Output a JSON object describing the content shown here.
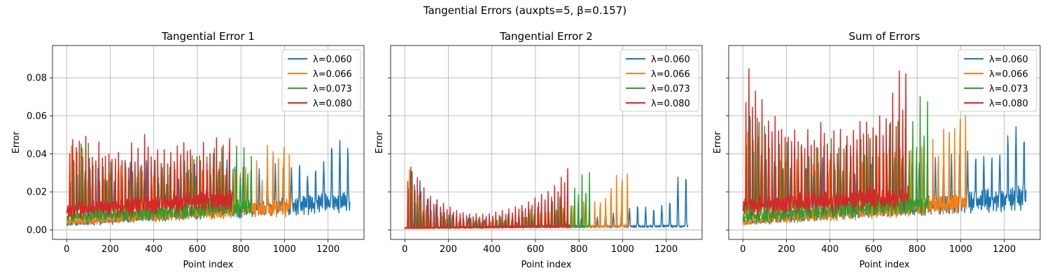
{
  "figure": {
    "suptitle": "Tangential Errors (auxpts=5, β=0.157)"
  },
  "colors": {
    "s0": "#1f77b4",
    "s1": "#ff7f0e",
    "s2": "#2ca02c",
    "s3": "#d62728",
    "grid": "#b0b0b0"
  },
  "chart_data": [
    {
      "type": "line",
      "title": "Tangential Error 1",
      "xlabel": "Point index",
      "ylabel": "Error",
      "xlim": [
        -65,
        1365
      ],
      "ylim": [
        -0.005,
        0.097
      ],
      "xticks": [
        0,
        200,
        400,
        600,
        800,
        1000,
        1200
      ],
      "yticks": [
        0.0,
        0.02,
        0.04,
        0.06,
        0.08
      ],
      "ytick_labels": [
        "0.00",
        "0.02",
        "0.04",
        "0.06",
        "0.08"
      ],
      "grid": true,
      "legend": "upper right",
      "series": [
        {
          "name": "λ=0.060",
          "n": 1300,
          "period": 37,
          "base_start": 0.003,
          "base_end": 0.015,
          "peaks": [
            0.04,
            0.043,
            0.036,
            0.032,
            0.028,
            0.025,
            0.03,
            0.035,
            0.033,
            0.036,
            0.033,
            0.03,
            0.032,
            0.027,
            0.031,
            0.035,
            0.032,
            0.03,
            0.035,
            0.036,
            0.034,
            0.032,
            0.031,
            0.034,
            0.03,
            0.033,
            0.036,
            0.034,
            0.035,
            0.03,
            0.033,
            0.035,
            0.048,
            0.048,
            0.043,
            0.033
          ]
        },
        {
          "name": "λ=0.066",
          "n": 1030,
          "period": 25,
          "base_start": 0.004,
          "base_end": 0.012,
          "peaks": [
            0.045,
            0.046,
            0.044,
            0.03,
            0.034,
            0.036,
            0.027,
            0.033,
            0.026,
            0.038,
            0.034,
            0.03,
            0.028,
            0.033,
            0.035,
            0.032,
            0.028,
            0.034,
            0.03,
            0.035,
            0.036,
            0.031,
            0.03,
            0.033,
            0.03,
            0.035,
            0.032,
            0.034,
            0.03,
            0.035,
            0.03,
            0.035,
            0.034,
            0.028,
            0.036,
            0.03,
            0.046,
            0.044,
            0.04,
            0.046,
            0.042
          ]
        },
        {
          "name": "λ=0.073",
          "n": 850,
          "period": 17,
          "base_start": 0.006,
          "base_end": 0.012,
          "peaks": [
            0.036,
            0.035,
            0.044,
            0.045,
            0.046,
            0.047,
            0.037,
            0.036,
            0.038,
            0.033,
            0.036,
            0.037,
            0.029,
            0.032,
            0.034,
            0.036,
            0.038,
            0.03,
            0.032,
            0.033,
            0.036,
            0.034,
            0.035,
            0.038,
            0.032,
            0.033,
            0.033,
            0.034,
            0.03,
            0.036,
            0.042,
            0.038,
            0.042,
            0.04,
            0.041,
            0.038,
            0.04,
            0.038,
            0.042,
            0.044,
            0.04,
            0.043,
            0.04,
            0.042,
            0.043,
            0.044,
            0.04,
            0.043,
            0.043,
            0.038
          ]
        },
        {
          "name": "λ=0.080",
          "n": 760,
          "period": 15,
          "base_start": 0.01,
          "base_end": 0.016,
          "peaks": [
            0.052,
            0.051,
            0.056,
            0.05,
            0.049,
            0.051,
            0.046,
            0.04,
            0.045,
            0.048,
            0.049,
            0.042,
            0.049,
            0.038,
            0.048,
            0.043,
            0.047,
            0.037,
            0.042,
            0.048,
            0.046,
            0.044,
            0.044,
            0.054,
            0.053,
            0.04,
            0.044,
            0.045,
            0.041,
            0.045,
            0.044,
            0.045,
            0.047,
            0.046,
            0.047,
            0.048,
            0.05,
            0.045,
            0.047,
            0.04,
            0.041,
            0.049,
            0.04,
            0.041,
            0.049,
            0.053,
            0.047,
            0.048,
            0.042,
            0.053,
            0.045
          ]
        }
      ]
    },
    {
      "type": "line",
      "title": "Tangential Error 2",
      "xlabel": "Point index",
      "ylabel": "Error",
      "xlim": [
        -65,
        1365
      ],
      "ylim": [
        -0.005,
        0.097
      ],
      "xticks": [
        0,
        200,
        400,
        600,
        800,
        1000,
        1200
      ],
      "yticks": [
        0.0,
        0.02,
        0.04,
        0.06,
        0.08
      ],
      "ytick_labels": [
        "",
        "",
        "",
        "",
        ""
      ],
      "grid": true,
      "legend": "upper right",
      "series": [
        {
          "name": "λ=0.060",
          "n": 1300,
          "period": 37,
          "base_start": 0.001,
          "base_end": 0.002,
          "peaks": [
            0.034,
            0.026,
            0.018,
            0.013,
            0.01,
            0.008,
            0.007,
            0.006,
            0.005,
            0.005,
            0.004,
            0.004,
            0.004,
            0.004,
            0.004,
            0.004,
            0.004,
            0.005,
            0.005,
            0.005,
            0.006,
            0.006,
            0.007,
            0.007,
            0.008,
            0.009,
            0.01,
            0.011,
            0.013,
            0.012,
            0.011,
            0.013,
            0.015,
            0.028,
            0.029,
            0.031
          ]
        },
        {
          "name": "λ=0.066",
          "n": 1030,
          "period": 25,
          "base_start": 0.001,
          "base_end": 0.002,
          "peaks": [
            0.032,
            0.024,
            0.016,
            0.012,
            0.01,
            0.008,
            0.007,
            0.006,
            0.006,
            0.005,
            0.005,
            0.005,
            0.005,
            0.005,
            0.005,
            0.005,
            0.005,
            0.006,
            0.006,
            0.006,
            0.007,
            0.007,
            0.008,
            0.008,
            0.009,
            0.01,
            0.01,
            0.011,
            0.012,
            0.013,
            0.013,
            0.014,
            0.015,
            0.015,
            0.015,
            0.016,
            0.017,
            0.025,
            0.029,
            0.03,
            0.03
          ]
        },
        {
          "name": "λ=0.073",
          "n": 850,
          "period": 17,
          "base_start": 0.001,
          "base_end": 0.002,
          "peaks": [
            0.034,
            0.028,
            0.022,
            0.018,
            0.015,
            0.013,
            0.012,
            0.011,
            0.01,
            0.009,
            0.008,
            0.008,
            0.007,
            0.007,
            0.007,
            0.006,
            0.006,
            0.006,
            0.006,
            0.006,
            0.006,
            0.006,
            0.006,
            0.006,
            0.007,
            0.007,
            0.007,
            0.008,
            0.008,
            0.009,
            0.009,
            0.01,
            0.01,
            0.011,
            0.012,
            0.012,
            0.013,
            0.014,
            0.014,
            0.015,
            0.016,
            0.017,
            0.017,
            0.018,
            0.019,
            0.022,
            0.028,
            0.029,
            0.03,
            0.03
          ]
        },
        {
          "name": "λ=0.080",
          "n": 760,
          "period": 15,
          "base_start": 0.001,
          "base_end": 0.002,
          "peaks": [
            0.035,
            0.036,
            0.032,
            0.03,
            0.027,
            0.024,
            0.021,
            0.019,
            0.018,
            0.017,
            0.016,
            0.015,
            0.014,
            0.013,
            0.012,
            0.011,
            0.011,
            0.01,
            0.01,
            0.009,
            0.009,
            0.009,
            0.009,
            0.009,
            0.009,
            0.009,
            0.009,
            0.01,
            0.01,
            0.011,
            0.011,
            0.012,
            0.012,
            0.013,
            0.014,
            0.014,
            0.015,
            0.016,
            0.017,
            0.018,
            0.019,
            0.02,
            0.021,
            0.022,
            0.023,
            0.025,
            0.027,
            0.03,
            0.033,
            0.035,
            0.035
          ]
        }
      ]
    },
    {
      "type": "line",
      "title": "Sum of Errors",
      "xlabel": "Point index",
      "ylabel": "Error",
      "xlim": [
        -65,
        1365
      ],
      "ylim": [
        -0.005,
        0.097
      ],
      "xticks": [
        0,
        200,
        400,
        600,
        800,
        1000,
        1200
      ],
      "yticks": [
        0.0,
        0.02,
        0.04,
        0.06,
        0.08
      ],
      "ytick_labels": [
        "",
        "",
        "",
        "",
        ""
      ],
      "grid": true,
      "legend": "upper right",
      "series": [
        {
          "name": "λ=0.060",
          "n": 1300,
          "period": 37,
          "base_start": 0.004,
          "base_end": 0.017,
          "peaks": [
            0.066,
            0.046,
            0.04,
            0.036,
            0.034,
            0.032,
            0.031,
            0.033,
            0.034,
            0.037,
            0.035,
            0.034,
            0.033,
            0.031,
            0.035,
            0.036,
            0.035,
            0.036,
            0.038,
            0.039,
            0.038,
            0.036,
            0.036,
            0.038,
            0.037,
            0.038,
            0.04,
            0.039,
            0.04,
            0.039,
            0.038,
            0.04,
            0.05,
            0.053,
            0.048,
            0.061
          ]
        },
        {
          "name": "λ=0.066",
          "n": 1030,
          "period": 25,
          "base_start": 0.004,
          "base_end": 0.014,
          "peaks": [
            0.052,
            0.054,
            0.05,
            0.04,
            0.044,
            0.042,
            0.036,
            0.04,
            0.034,
            0.042,
            0.04,
            0.038,
            0.036,
            0.04,
            0.041,
            0.04,
            0.036,
            0.041,
            0.04,
            0.042,
            0.043,
            0.04,
            0.039,
            0.042,
            0.04,
            0.044,
            0.042,
            0.044,
            0.042,
            0.045,
            0.042,
            0.046,
            0.046,
            0.044,
            0.048,
            0.045,
            0.053,
            0.055,
            0.056,
            0.065,
            0.062
          ]
        },
        {
          "name": "λ=0.073",
          "n": 850,
          "period": 17,
          "base_start": 0.006,
          "base_end": 0.014,
          "peaks": [
            0.066,
            0.058,
            0.06,
            0.059,
            0.057,
            0.055,
            0.05,
            0.048,
            0.048,
            0.045,
            0.047,
            0.047,
            0.04,
            0.042,
            0.043,
            0.045,
            0.046,
            0.04,
            0.042,
            0.043,
            0.045,
            0.044,
            0.045,
            0.047,
            0.042,
            0.043,
            0.043,
            0.045,
            0.042,
            0.047,
            0.052,
            0.049,
            0.053,
            0.052,
            0.053,
            0.05,
            0.052,
            0.05,
            0.055,
            0.057,
            0.053,
            0.056,
            0.053,
            0.055,
            0.057,
            0.058,
            0.06,
            0.069,
            0.07,
            0.07
          ]
        },
        {
          "name": "λ=0.080",
          "n": 760,
          "period": 15,
          "base_start": 0.012,
          "base_end": 0.017,
          "peaks": [
            0.086,
            0.092,
            0.087,
            0.08,
            0.076,
            0.072,
            0.067,
            0.06,
            0.063,
            0.065,
            0.064,
            0.056,
            0.062,
            0.05,
            0.06,
            0.054,
            0.058,
            0.048,
            0.052,
            0.058,
            0.055,
            0.052,
            0.052,
            0.062,
            0.061,
            0.048,
            0.052,
            0.053,
            0.05,
            0.055,
            0.053,
            0.055,
            0.058,
            0.058,
            0.06,
            0.062,
            0.064,
            0.06,
            0.063,
            0.058,
            0.06,
            0.066,
            0.06,
            0.062,
            0.07,
            0.076,
            0.072,
            0.088,
            0.078,
            0.088,
            0.07
          ]
        }
      ]
    }
  ]
}
